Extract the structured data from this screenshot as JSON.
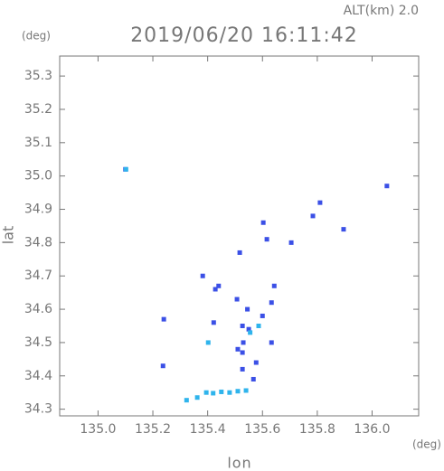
{
  "chart_data": {
    "type": "scatter",
    "title": "2019/06/20 16:11:42",
    "subtitle": "ALT(km) 2.0",
    "x_unit": "(deg)",
    "y_unit": "(deg)",
    "x_label": "lon",
    "y_label": "lat",
    "xlim": [
      134.86,
      136.17
    ],
    "ylim": [
      34.28,
      35.36
    ],
    "xticks": [
      {
        "value": 135,
        "label": "135.0"
      },
      135.2,
      135.4,
      135.6,
      135.8,
      {
        "value": 136,
        "label": "136.0"
      }
    ],
    "yticks": [
      34.3,
      34.4,
      34.5,
      34.6,
      34.7,
      34.8,
      34.9,
      {
        "value": 35,
        "label": "35.0"
      },
      35.1,
      35.2,
      35.3
    ],
    "series": [
      {
        "color": "#3b50e6",
        "x": [
          135.1,
          135.24,
          135.237,
          135.527,
          135.527,
          135.633,
          135.577,
          135.527,
          135.633,
          135.643,
          135.507,
          135.428,
          135.422,
          135.517,
          135.603,
          135.616,
          135.81,
          135.784,
          135.896,
          136.054,
          135.705,
          135.382,
          135.567,
          135.55,
          135.53,
          135.51,
          135.545,
          135.6,
          135.44
        ],
        "values": [
          35.02,
          34.57,
          34.43,
          34.55,
          34.47,
          34.5,
          34.44,
          34.42,
          34.62,
          34.67,
          34.63,
          34.66,
          34.56,
          34.77,
          34.86,
          34.81,
          34.92,
          34.88,
          34.84,
          34.97,
          34.8,
          34.7,
          34.39,
          34.54,
          34.5,
          34.48,
          34.6,
          34.58,
          34.67
        ]
      },
      {
        "color": "#2fb4ec",
        "x": [
          135.102,
          135.402,
          135.362,
          135.323,
          135.395,
          135.42,
          135.45,
          135.48,
          135.51,
          135.54,
          135.586,
          135.555
        ],
        "values": [
          35.02,
          34.5,
          34.335,
          34.327,
          34.35,
          34.348,
          34.352,
          34.35,
          34.354,
          34.356,
          34.55,
          34.53
        ]
      }
    ]
  }
}
